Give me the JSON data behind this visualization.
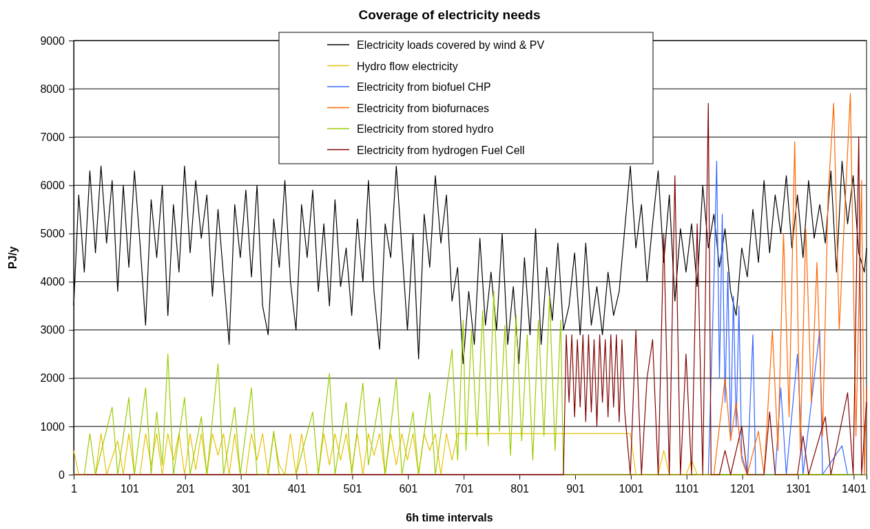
{
  "chart_data": {
    "type": "line",
    "title": "Coverage of electricity needs",
    "xlabel": "6h time intervals",
    "ylabel": "PJ/y",
    "xlim": [
      1,
      1424
    ],
    "xticks": [
      1,
      101,
      201,
      301,
      401,
      501,
      601,
      701,
      801,
      901,
      1001,
      1101,
      1201,
      1301,
      1401
    ],
    "ylim": [
      0,
      9000
    ],
    "yticks": [
      0,
      1000,
      2000,
      3000,
      4000,
      5000,
      6000,
      7000,
      8000,
      9000
    ],
    "grid": "y",
    "legend": "top",
    "marker": "none",
    "line_style": "solid",
    "series": [
      {
        "name": "Electricity loads covered by wind & PV",
        "color": "#000000",
        "x": [
          1,
          10,
          20,
          30,
          40,
          50,
          60,
          70,
          80,
          90,
          100,
          110,
          120,
          130,
          140,
          150,
          160,
          170,
          180,
          190,
          200,
          210,
          220,
          230,
          240,
          250,
          260,
          270,
          280,
          290,
          300,
          310,
          320,
          330,
          340,
          350,
          360,
          370,
          380,
          390,
          400,
          410,
          420,
          430,
          440,
          450,
          460,
          470,
          480,
          490,
          500,
          510,
          520,
          530,
          540,
          550,
          560,
          570,
          580,
          590,
          600,
          610,
          620,
          630,
          640,
          650,
          660,
          670,
          680,
          690,
          700,
          710,
          720,
          730,
          740,
          750,
          760,
          770,
          780,
          790,
          800,
          810,
          820,
          830,
          840,
          850,
          860,
          870,
          880,
          890,
          900,
          910,
          920,
          930,
          940,
          950,
          960,
          970,
          980,
          990,
          1000,
          1010,
          1020,
          1030,
          1040,
          1050,
          1060,
          1070,
          1080,
          1090,
          1100,
          1110,
          1120,
          1130,
          1140,
          1150,
          1160,
          1170,
          1180,
          1190,
          1200,
          1210,
          1220,
          1230,
          1240,
          1250,
          1260,
          1270,
          1280,
          1290,
          1300,
          1310,
          1320,
          1330,
          1340,
          1350,
          1360,
          1370,
          1380,
          1390,
          1400,
          1410,
          1420,
          1424
        ],
        "values": [
          3500,
          5800,
          4200,
          6300,
          4600,
          6400,
          4800,
          6100,
          3800,
          6000,
          4300,
          6300,
          4800,
          3100,
          5700,
          4500,
          6000,
          3300,
          5600,
          4200,
          6400,
          4600,
          6100,
          4900,
          5800,
          3700,
          5500,
          4100,
          2700,
          5600,
          4500,
          5900,
          4100,
          6000,
          3500,
          2900,
          5300,
          4300,
          6100,
          4000,
          3000,
          5600,
          4500,
          5900,
          3800,
          5200,
          3500,
          5700,
          3900,
          4700,
          3300,
          5300,
          4000,
          6100,
          3800,
          2600,
          5200,
          4500,
          6400,
          4700,
          3000,
          5000,
          2400,
          5400,
          4300,
          6200,
          4800,
          5800,
          3600,
          4300,
          2300,
          3800,
          2700,
          4900,
          3100,
          4200,
          3000,
          5000,
          2700,
          3900,
          2300,
          4500,
          2900,
          5100,
          2700,
          4300,
          3200,
          4800,
          3000,
          3500,
          4600,
          2900,
          4800,
          3100,
          3900,
          2900,
          4200,
          3300,
          3800,
          5100,
          6400,
          4700,
          5600,
          4000,
          5200,
          6300,
          4400,
          5800,
          3600,
          5100,
          4200,
          5200,
          3900,
          6000,
          4700,
          5400,
          4300,
          5100,
          3800,
          3300,
          4700,
          4100,
          5500,
          4400,
          6100,
          4600,
          5800,
          5000,
          6200,
          4700,
          5800,
          4500,
          6100,
          4900,
          5600,
          4800,
          6300,
          4200,
          6500,
          5200,
          6200,
          4600,
          4200,
          4700
        ]
      },
      {
        "name": "Hydro flow electricity",
        "color": "#e8c000",
        "x": [
          1,
          10,
          40,
          50,
          60,
          80,
          90,
          100,
          110,
          120,
          130,
          140,
          150,
          160,
          170,
          180,
          190,
          200,
          210,
          220,
          230,
          240,
          250,
          260,
          270,
          280,
          290,
          300,
          310,
          320,
          330,
          340,
          350,
          360,
          370,
          380,
          390,
          400,
          410,
          420,
          440,
          450,
          460,
          470,
          480,
          490,
          500,
          510,
          520,
          530,
          540,
          550,
          560,
          570,
          580,
          590,
          600,
          610,
          620,
          630,
          640,
          650,
          660,
          670,
          680,
          690,
          700,
          850,
          1000,
          1010,
          1050,
          1060,
          1070,
          1100,
          1110,
          1120,
          1424
        ],
        "values": [
          500,
          0,
          0,
          850,
          0,
          700,
          0,
          850,
          0,
          0,
          850,
          200,
          850,
          0,
          850,
          300,
          850,
          0,
          850,
          100,
          850,
          0,
          850,
          400,
          850,
          0,
          850,
          0,
          0,
          850,
          300,
          850,
          0,
          850,
          200,
          0,
          850,
          0,
          850,
          0,
          0,
          850,
          200,
          850,
          300,
          850,
          100,
          850,
          0,
          850,
          400,
          850,
          0,
          850,
          200,
          850,
          300,
          850,
          0,
          850,
          500,
          850,
          0,
          850,
          300,
          850,
          850,
          850,
          850,
          0,
          0,
          500,
          0,
          0,
          300,
          0,
          0
        ]
      },
      {
        "name": "Electricity from biofuel CHP",
        "color": "#3366ff",
        "x": [
          1,
          1140,
          1150,
          1155,
          1160,
          1165,
          1170,
          1175,
          1180,
          1185,
          1190,
          1195,
          1200,
          1210,
          1220,
          1225,
          1260,
          1270,
          1280,
          1300,
          1310,
          1340,
          1345,
          1380,
          1390,
          1424
        ],
        "values": [
          0,
          0,
          4000,
          6500,
          2000,
          5400,
          1500,
          4200,
          800,
          3700,
          1000,
          3500,
          400,
          0,
          2900,
          0,
          0,
          1800,
          0,
          2500,
          0,
          3000,
          0,
          600,
          0,
          0
        ]
      },
      {
        "name": "Electricity from biofurnaces",
        "color": "#ff6600",
        "x": [
          1,
          1140,
          1150,
          1160,
          1170,
          1180,
          1190,
          1200,
          1210,
          1230,
          1240,
          1255,
          1265,
          1275,
          1285,
          1295,
          1305,
          1315,
          1325,
          1335,
          1345,
          1355,
          1365,
          1375,
          1385,
          1395,
          1405,
          1415,
          1420,
          1424
        ],
        "values": [
          0,
          0,
          0,
          1000,
          2000,
          700,
          1500,
          300,
          0,
          900,
          0,
          3000,
          500,
          5000,
          1200,
          6900,
          500,
          5100,
          1500,
          4400,
          800,
          5800,
          7700,
          3000,
          5500,
          7900,
          800,
          6100,
          0,
          1800
        ]
      },
      {
        "name": "Electricity from stored hydro",
        "color": "#99cc00",
        "x": [
          1,
          20,
          30,
          40,
          70,
          80,
          100,
          110,
          130,
          140,
          150,
          160,
          170,
          180,
          200,
          210,
          230,
          240,
          260,
          270,
          290,
          300,
          320,
          330,
          350,
          360,
          370,
          400,
          430,
          440,
          460,
          470,
          490,
          500,
          520,
          530,
          550,
          560,
          580,
          590,
          610,
          620,
          640,
          650,
          680,
          690,
          700,
          705,
          715,
          725,
          735,
          745,
          755,
          765,
          775,
          785,
          795,
          805,
          815,
          825,
          835,
          845,
          855,
          865,
          875,
          880,
          1424
        ],
        "values": [
          0,
          0,
          850,
          0,
          1400,
          0,
          1600,
          0,
          1800,
          0,
          1300,
          200,
          2500,
          0,
          1600,
          0,
          1200,
          0,
          2300,
          0,
          1400,
          0,
          1800,
          0,
          0,
          900,
          0,
          0,
          1300,
          0,
          2100,
          0,
          1500,
          0,
          1900,
          200,
          1600,
          0,
          2000,
          0,
          1300,
          0,
          1700,
          0,
          2600,
          300,
          3200,
          500,
          3000,
          800,
          3400,
          600,
          3800,
          900,
          3100,
          400,
          3300,
          700,
          2900,
          300,
          3200,
          800,
          3700,
          500,
          3200,
          0,
          0
        ]
      },
      {
        "name": "Electricity from hydrogen Fuel Cell",
        "color": "#800000",
        "x": [
          1,
          880,
          885,
          890,
          895,
          900,
          905,
          910,
          915,
          920,
          925,
          930,
          935,
          940,
          945,
          950,
          955,
          960,
          965,
          970,
          975,
          980,
          985,
          990,
          1000,
          1010,
          1020,
          1030,
          1040,
          1050,
          1060,
          1070,
          1080,
          1090,
          1100,
          1110,
          1120,
          1130,
          1140,
          1145,
          1160,
          1170,
          1180,
          1200,
          1210,
          1240,
          1250,
          1260,
          1300,
          1310,
          1320,
          1350,
          1360,
          1390,
          1400,
          1410,
          1415,
          1424
        ],
        "values": [
          0,
          0,
          2900,
          1500,
          2900,
          1200,
          2800,
          1400,
          2900,
          1100,
          2900,
          1300,
          2800,
          1000,
          2900,
          1500,
          2800,
          1200,
          2900,
          1400,
          2900,
          1100,
          2800,
          1300,
          0,
          3000,
          0,
          2000,
          2800,
          0,
          5000,
          0,
          6200,
          0,
          2500,
          0,
          5200,
          0,
          7700,
          0,
          0,
          500,
          0,
          1000,
          0,
          0,
          1300,
          0,
          0,
          800,
          0,
          1200,
          0,
          1700,
          0,
          7000,
          0,
          1500
        ]
      }
    ]
  }
}
